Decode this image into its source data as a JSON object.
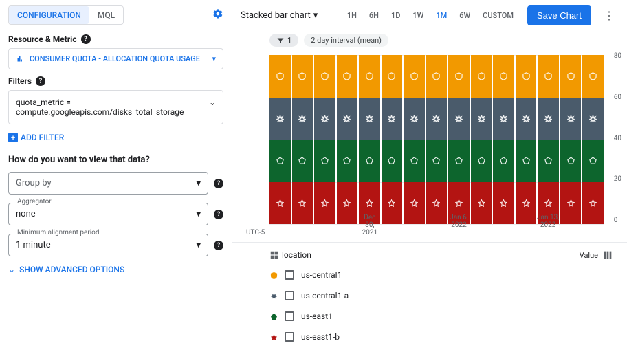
{
  "left": {
    "tabs": {
      "config": "CONFIGURATION",
      "mql": "MQL"
    },
    "resource_label": "Resource & Metric",
    "metric_name": "CONSUMER QUOTA - ALLOCATION QUOTA USAGE",
    "filters_label": "Filters",
    "filter_text_l1": "quota_metric =",
    "filter_text_l2": "compute.googleapis.com/disks_total_storage",
    "add_filter": "ADD FILTER",
    "view_prompt": "How do you want to view that data?",
    "groupby": {
      "placeholder": "Group by"
    },
    "aggregator": {
      "label": "Aggregator",
      "value": "none"
    },
    "min_align": {
      "label": "Minimum alignment period",
      "value": "1 minute"
    },
    "advanced": "SHOW ADVANCED OPTIONS"
  },
  "top": {
    "chart_type": "Stacked bar chart",
    "ranges": [
      "1H",
      "6H",
      "1D",
      "1W",
      "1M",
      "6W",
      "CUSTOM"
    ],
    "active_range": "1M",
    "save": "Save Chart",
    "filter_count": "1",
    "interval_chip": "2 day interval (mean)"
  },
  "chart": {
    "series": [
      {
        "key": "us-east1-b",
        "color": "#b31412",
        "value": 20,
        "shape": "star"
      },
      {
        "key": "us-east1",
        "color": "#0d652d",
        "value": 20,
        "shape": "pentagon"
      },
      {
        "key": "us-central1-a",
        "color": "#4a5b6b",
        "value": 20,
        "shape": "burst"
      },
      {
        "key": "us-central1",
        "color": "#f29900",
        "value": 20,
        "shape": "shield"
      }
    ],
    "bar_count": 15,
    "ymax": 80,
    "yticks": [
      "80",
      "60",
      "40",
      "20",
      "0"
    ],
    "tz": "UTC-5",
    "xlabels": [
      "Dec 30, 2021",
      "Jan 6, 2022",
      "Jan 13, 2022"
    ]
  },
  "legend": {
    "column": "location",
    "value_label": "Value",
    "items": [
      {
        "label": "us-central1",
        "color": "#f29900",
        "shape": "shield"
      },
      {
        "label": "us-central1-a",
        "color": "#4a5b6b",
        "shape": "burst"
      },
      {
        "label": "us-east1",
        "color": "#0d652d",
        "shape": "pentagon"
      },
      {
        "label": "us-east1-b",
        "color": "#b31412",
        "shape": "star"
      }
    ]
  }
}
